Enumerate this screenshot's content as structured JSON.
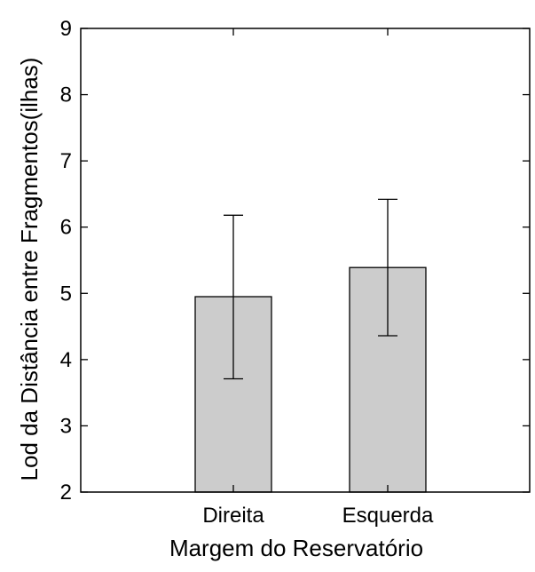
{
  "chart_data": {
    "type": "bar",
    "categories": [
      "Direita",
      "Esquerda"
    ],
    "values": [
      4.95,
      5.39
    ],
    "error_bars": {
      "upper": [
        6.18,
        6.42
      ],
      "lower": [
        3.71,
        4.36
      ]
    },
    "xlabel": "Margem do Reservatório",
    "ylabel": "Lod da Distância entre Fragmentos(ilhas)",
    "ylim": [
      2,
      9
    ],
    "yticks": [
      2,
      3,
      4,
      5,
      6,
      7,
      8,
      9
    ],
    "grid": false,
    "bar_color": "#cccccc",
    "edge_color": "#000000"
  }
}
